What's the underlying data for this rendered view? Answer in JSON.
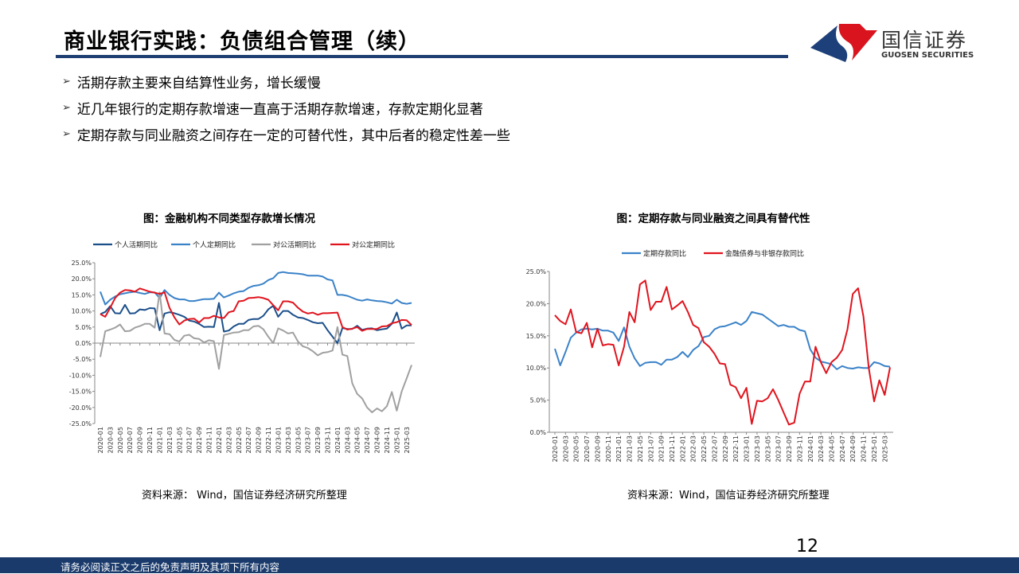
{
  "header": {
    "title": "商业银行实践：负债组合管理（续）",
    "logo_cn": "国信证券",
    "logo_en": "GUOSEN SECURITIES"
  },
  "bullets": [
    "活期存款主要来自结算性业务，增长缓慢",
    "近几年银行的定期存款增速一直高于活期存款增速，存款定期化显著",
    "定期存款与同业融资之间存在一定的可替代性，其中后者的稳定性差一些"
  ],
  "page_number": "12",
  "footer": "请务必阅读正文之后的免责声明及其项下所有内容",
  "colors": {
    "title_bar": "#1f3f72",
    "footer": "#1a3a6b",
    "dark_blue": "#1b4f8a",
    "light_blue": "#3a82c8",
    "gray": "#a0a0a0",
    "red": "#e0141e"
  },
  "chart_data": [
    {
      "type": "line",
      "title": "图：金融机构不同类型存款增长情况",
      "source": "资料来源：  Wind，国信证券经济研究所整理",
      "legend_position": "top",
      "grid": false,
      "ylim": [
        -25,
        25
      ],
      "y_ticks": [
        "25.0%",
        "20.0%",
        "15.0%",
        "10.0%",
        "5.0%",
        "0.0%",
        "-5.0%",
        "-10.0%",
        "-15.0%",
        "-20.0%",
        "-25.0%"
      ],
      "y_tick_values": [
        25,
        20,
        15,
        10,
        5,
        0,
        -5,
        -10,
        -15,
        -20,
        -25
      ],
      "x_ticks": [
        "2020-01",
        "2020-03",
        "2020-05",
        "2020-07",
        "2020-09",
        "2020-11",
        "2021-01",
        "2021-03",
        "2021-05",
        "2021-07",
        "2021-09",
        "2021-11",
        "2022-01",
        "2022-03",
        "2022-05",
        "2022-07",
        "2022-09",
        "2022-11",
        "2023-01",
        "2023-03",
        "2023-05",
        "2023-07",
        "2023-09",
        "2023-11",
        "2024-01",
        "2024-03",
        "2024-05",
        "2024-07",
        "2024-09",
        "2024-11",
        "2025-01",
        "2025-03"
      ],
      "x_range": [
        "2020-01",
        "2025-04"
      ],
      "series": [
        {
          "name": "个人活期同比",
          "color": "#1b4f8a",
          "values": [
            9,
            9.7,
            11.5,
            9.3,
            9.2,
            11.9,
            9.2,
            9.3,
            10.5,
            10.3,
            10.9,
            10.8,
            4.0,
            9.2,
            9.6,
            9.3,
            8.8,
            8.2,
            7.0,
            6.7,
            6.0,
            5.0,
            5.1,
            5.0,
            12.5,
            3.6,
            3.9,
            5.2,
            6.0,
            6.0,
            7.2,
            7.5,
            7.5,
            8.5,
            10.5,
            11.6,
            8.2,
            10.0,
            10.0,
            8.8,
            8.0,
            7.8,
            7.2,
            6.5,
            6.2,
            6.3,
            4.0,
            2.0,
            0,
            4.7,
            4.4,
            4.4,
            5.4,
            4.1,
            4.5,
            4.6,
            4.0,
            4.3,
            4.5,
            6.0,
            9.5,
            4.5,
            5.5,
            5.5
          ]
        },
        {
          "name": "个人定期同比",
          "color": "#3a82c8",
          "values": [
            16,
            12,
            13.5,
            14.5,
            15.2,
            15.5,
            15.8,
            16,
            15.6,
            15.3,
            15.8,
            15.8,
            14.0,
            16.5,
            15,
            14,
            13.6,
            13.6,
            13.1,
            13.1,
            13.4,
            13.7,
            13.7,
            13.8,
            15.7,
            14.2,
            14.8,
            15.5,
            16,
            16.2,
            17.2,
            17.8,
            18,
            18.5,
            19.6,
            20.2,
            21.8,
            22.1,
            21.8,
            21.7,
            21.6,
            21.4,
            21,
            21,
            21,
            20.7,
            19.8,
            19.5,
            15,
            15,
            14.7,
            14.1,
            13.5,
            13.2,
            13.6,
            13.3,
            13.1,
            13,
            12.7,
            12.3,
            13.5,
            12.5,
            12.2,
            12.5
          ]
        },
        {
          "name": "对公活期同比",
          "color": "#a0a0a0",
          "values": [
            -4.3,
            3.7,
            4.2,
            4.8,
            5.8,
            3.7,
            3.8,
            4.8,
            5.3,
            6.0,
            6.0,
            4.8,
            15.8,
            3.0,
            2.8,
            1.0,
            0.5,
            2.3,
            2.6,
            1.5,
            1.3,
            0.2,
            0.9,
            0.6,
            -8.0,
            2.5,
            2.9,
            3.3,
            3.4,
            4.0,
            4.0,
            5.2,
            5.4,
            4.3,
            2.0,
            0.0,
            4.6,
            3.9,
            3.0,
            3.3,
            0.5,
            -1.0,
            -1.5,
            -2.5,
            -3.8,
            -3.0,
            -2.8,
            -2.3,
            5.0,
            -3.6,
            -4.0,
            -12.5,
            -15.8,
            -17.2,
            -20,
            -21.5,
            -20.3,
            -21.2,
            -19.6,
            -15.2,
            -21,
            -15,
            -11,
            -6.8
          ]
        },
        {
          "name": "对公定期同比",
          "color": "#e0141e",
          "values": [
            9,
            8.2,
            11,
            14,
            15.7,
            16.5,
            16.4,
            16,
            17,
            16.5,
            16,
            15.7,
            15.3,
            15.8,
            11,
            8,
            5.8,
            7,
            7.5,
            7.6,
            6.4,
            7.8,
            7.8,
            8.5,
            8,
            7.8,
            9.6,
            10,
            13,
            13.2,
            14,
            14.1,
            14.3,
            14,
            13.5,
            11.8,
            10.2,
            13,
            13,
            12.6,
            11,
            9.8,
            9.2,
            9.5,
            8.8,
            9.3,
            9.3,
            9.4,
            9.5,
            5,
            4.2,
            4.5,
            5,
            3.8,
            4.4,
            4.4,
            4.4,
            5.2,
            5.3,
            6.2,
            6.5,
            7.2,
            7.1,
            5.6
          ]
        }
      ]
    },
    {
      "type": "line",
      "title": "图：定期存款与同业融资之间具有替代性",
      "source": "资料来源：Wind，国信证券经济研究所整理",
      "legend_position": "top",
      "grid": false,
      "ylim": [
        0,
        25
      ],
      "y_ticks": [
        "25.0%",
        "20.0%",
        "15.0%",
        "10.0%",
        "5.0%",
        "0.0%"
      ],
      "y_tick_values": [
        25,
        20,
        15,
        10,
        5,
        0
      ],
      "x_ticks": [
        "2020-01",
        "2020-03",
        "2020-05",
        "2020-07",
        "2020-09",
        "2020-11",
        "2021-01",
        "2021-03",
        "2021-05",
        "2021-07",
        "2021-09",
        "2021-11",
        "2022-01",
        "2022-03",
        "2022-05",
        "2022-07",
        "2022-09",
        "2022-11",
        "2023-01",
        "2023-03",
        "2023-05",
        "2023-07",
        "2023-09",
        "2023-11",
        "2024-01",
        "2024-03",
        "2024-05",
        "2024-07",
        "2024-09",
        "2024-11",
        "2025-01",
        "2025-03"
      ],
      "x_range": [
        "2020-01",
        "2025-04"
      ],
      "series": [
        {
          "name": "定期存款同比",
          "color": "#3a82c8",
          "values": [
            13,
            10.4,
            12.5,
            14.7,
            15.5,
            16,
            16.1,
            16,
            16.1,
            15.8,
            15.8,
            15.5,
            14.2,
            16.3,
            13.3,
            11.5,
            10.3,
            10.8,
            10.9,
            10.9,
            10.5,
            11.3,
            11.3,
            11.7,
            12.5,
            11.7,
            12.8,
            13.4,
            14.8,
            15,
            16,
            16.4,
            16.5,
            16.8,
            17.1,
            16.7,
            17.3,
            18.7,
            18.5,
            18.3,
            17.7,
            17.1,
            16.5,
            16.7,
            16.4,
            16.4,
            15.9,
            15.7,
            12.9,
            11.6,
            11,
            10.8,
            10.6,
            9.8,
            10.3,
            10,
            9.9,
            10.1,
            10,
            10,
            10.9,
            10.7,
            10.3,
            10.2
          ]
        },
        {
          "name": "金融债券与非银存款同比",
          "color": "#e0141e",
          "values": [
            18.2,
            17.3,
            16.8,
            19.1,
            15.6,
            15.4,
            17.0,
            13.2,
            16.1,
            13.5,
            13.7,
            13.6,
            10.4,
            13.3,
            18.7,
            17.1,
            23,
            23.6,
            19,
            20.3,
            20.3,
            22.6,
            19.1,
            19.7,
            20.4,
            18.7,
            16.7,
            16.2,
            14,
            13.3,
            12.2,
            10.7,
            10.6,
            7.4,
            7.0,
            5.3,
            6.9,
            1.3,
            4.9,
            4.8,
            5.3,
            6.7,
            5.0,
            3.1,
            1.2,
            1.5,
            6.0,
            7.9,
            7.9,
            13.3,
            10.9,
            9.2,
            10.9,
            11.6,
            12.8,
            16,
            21.5,
            22.4,
            18,
            10,
            4.8,
            8.1,
            5.8,
            10.1
          ]
        }
      ]
    }
  ]
}
